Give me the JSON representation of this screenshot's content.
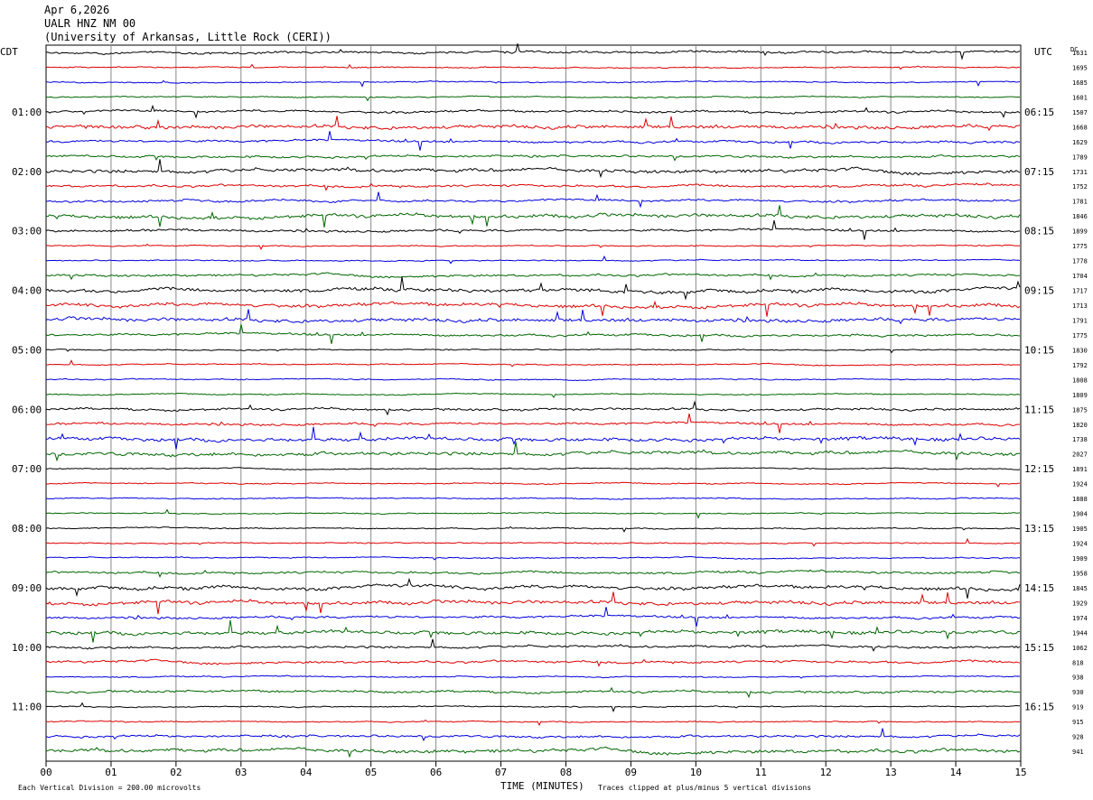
{
  "header": {
    "date": "Apr 6,2026",
    "station": "UALR HNZ NM 00",
    "institution": "(University of Arkansas, Little Rock (CERI))"
  },
  "footer": {
    "scale_note": "Each Vertical Division =  200.00 microvolts",
    "clip_note": "Traces clipped at plus/minus 5 vertical divisions"
  },
  "chart_data": {
    "type": "line",
    "title": "",
    "xlabel": "TIME (MINUTES)",
    "left_axis_label": "CDT",
    "right_axis_label": "UTC",
    "dc_label": "DC",
    "x_ticks": [
      "00",
      "01",
      "02",
      "03",
      "04",
      "05",
      "06",
      "07",
      "08",
      "09",
      "10",
      "11",
      "12",
      "13",
      "14",
      "15"
    ],
    "xlim": [
      0,
      15
    ],
    "grid_vertical": true,
    "trace_colors": [
      "#000000",
      "#dd0000",
      "#0000dd",
      "#006600"
    ],
    "left_time_labels": [
      {
        "row": 4,
        "text": "01:00"
      },
      {
        "row": 8,
        "text": "02:00"
      },
      {
        "row": 12,
        "text": "03:00"
      },
      {
        "row": 16,
        "text": "04:00"
      },
      {
        "row": 20,
        "text": "05:00"
      },
      {
        "row": 24,
        "text": "06:00"
      },
      {
        "row": 28,
        "text": "07:00"
      },
      {
        "row": 32,
        "text": "08:00"
      },
      {
        "row": 36,
        "text": "09:00"
      },
      {
        "row": 40,
        "text": "10:00"
      },
      {
        "row": 44,
        "text": "11:00"
      }
    ],
    "right_time_labels": [
      {
        "row": 4,
        "text": "06:15"
      },
      {
        "row": 8,
        "text": "07:15"
      },
      {
        "row": 12,
        "text": "08:15"
      },
      {
        "row": 16,
        "text": "09:15"
      },
      {
        "row": 20,
        "text": "10:15"
      },
      {
        "row": 24,
        "text": "11:15"
      },
      {
        "row": 28,
        "text": "12:15"
      },
      {
        "row": 32,
        "text": "13:15"
      },
      {
        "row": 36,
        "text": "14:15"
      },
      {
        "row": 40,
        "text": "15:15"
      },
      {
        "row": 44,
        "text": "16:15"
      }
    ],
    "dc_values": [
      "1631",
      "1695",
      "1685",
      "1601",
      "1507",
      "1668",
      "1629",
      "1789",
      "1731",
      "1752",
      "1781",
      "1846",
      "1899",
      "1775",
      "1778",
      "1704",
      "1717",
      "1713",
      "1791",
      "1775",
      "1830",
      "1792",
      "1808",
      "1809",
      "1875",
      "1820",
      "1738",
      "2027",
      "1891",
      "1924",
      "1888",
      "1904",
      "1905",
      "1924",
      "1909",
      "1958",
      "1845",
      "1929",
      "1974",
      "1944",
      "1062",
      "818",
      "938",
      "930",
      "919",
      "915",
      "928",
      "941"
    ],
    "activity": [
      2,
      1,
      1,
      1,
      2,
      3,
      2,
      2,
      3,
      2,
      2,
      3,
      2,
      1,
      1,
      2,
      3,
      3,
      3,
      2,
      1,
      1,
      1,
      1,
      2,
      2,
      3,
      3,
      1,
      1,
      1,
      1,
      1,
      1,
      1,
      2,
      3,
      3,
      2,
      3,
      2,
      2,
      1,
      2,
      1,
      1,
      2,
      3
    ]
  }
}
